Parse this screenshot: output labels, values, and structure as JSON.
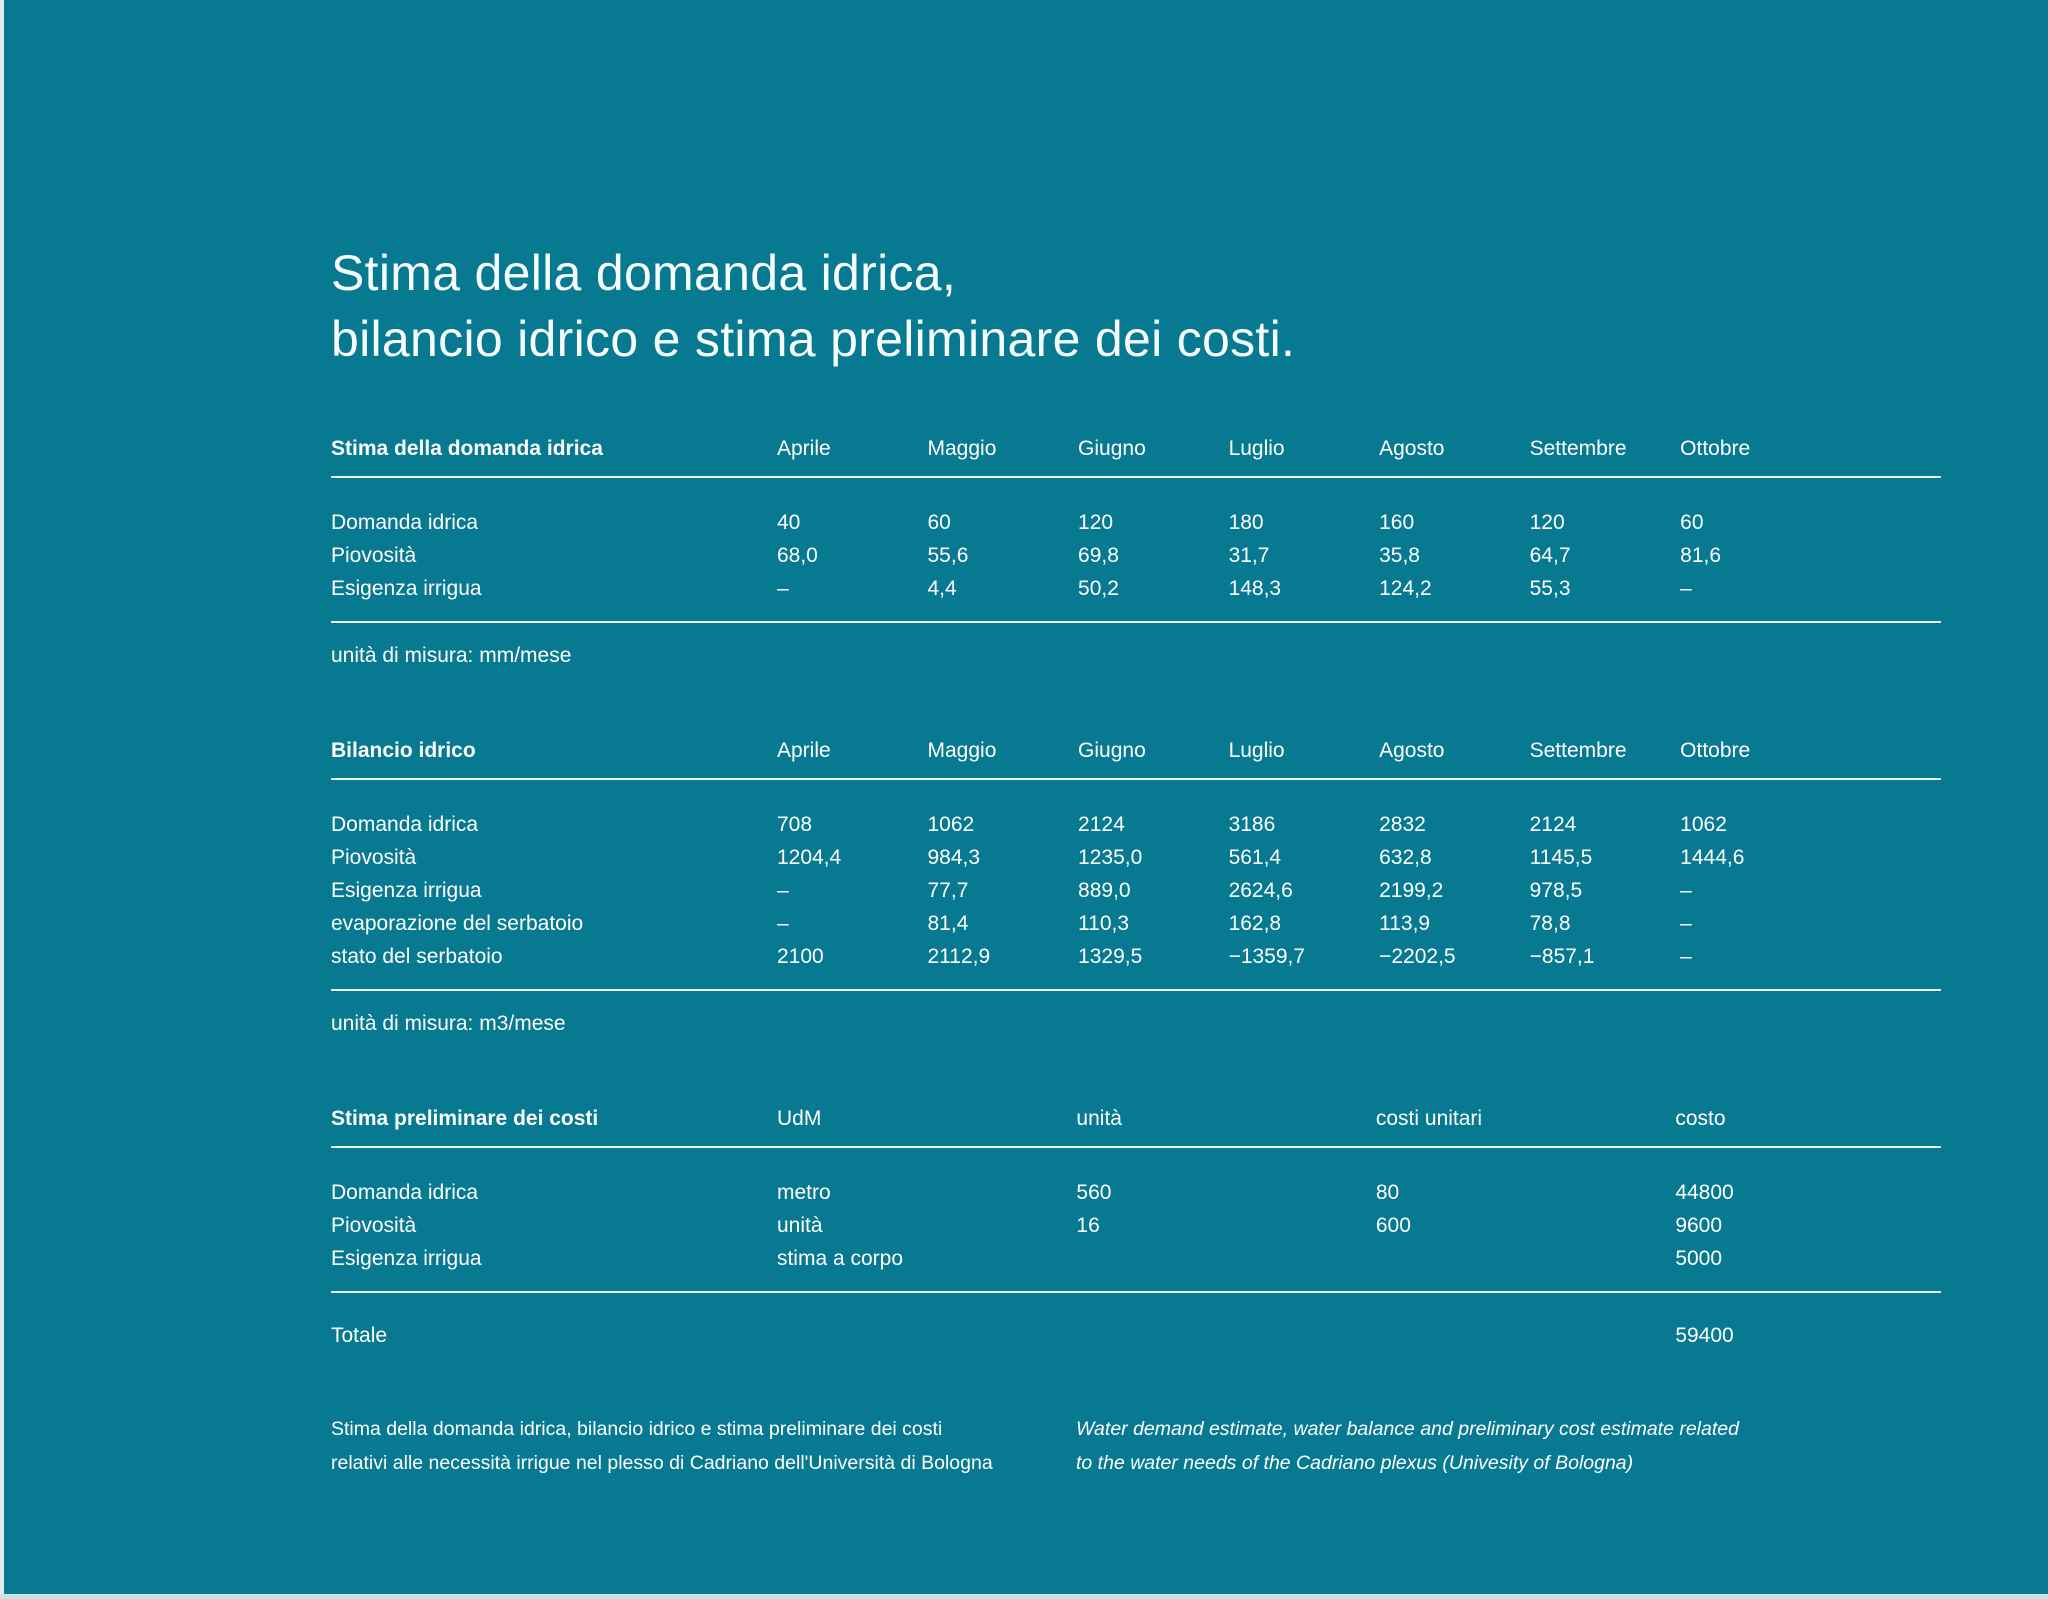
{
  "page": {
    "title_line1": "Stima della domanda idrica,",
    "title_line2": "bilancio idrico e stima preliminare dei costi."
  },
  "colors": {
    "background": "#077991",
    "text": "#ffffff",
    "rule": "#e9f4f6",
    "edge_strip": "#d8e6ea"
  },
  "tables": [
    {
      "title": "Stima della domanda idrica",
      "columns": [
        "Aprile",
        "Maggio",
        "Giugno",
        "Luglio",
        "Agosto",
        "Settembre",
        "Ottobre"
      ],
      "rows": [
        {
          "label": "Domanda idrica",
          "values": [
            "40",
            "60",
            "120",
            "180",
            "160",
            "120",
            "60"
          ]
        },
        {
          "label": "Piovosità",
          "values": [
            "68,0",
            "55,6",
            "69,8",
            "31,7",
            "35,8",
            "64,7",
            "81,6"
          ]
        },
        {
          "label": "Esigenza irrigua",
          "values": [
            "–",
            "4,4",
            "50,2",
            "148,3",
            "124,2",
            "55,3",
            "–"
          ]
        }
      ],
      "note": "unità di misura: mm/mese"
    },
    {
      "title": "Bilancio idrico",
      "columns": [
        "Aprile",
        "Maggio",
        "Giugno",
        "Luglio",
        "Agosto",
        "Settembre",
        "Ottobre"
      ],
      "rows": [
        {
          "label": "Domanda idrica",
          "values": [
            "708",
            "1062",
            "2124",
            "3186",
            "2832",
            "2124",
            "1062"
          ]
        },
        {
          "label": "Piovosità",
          "values": [
            "1204,4",
            "984,3",
            "1235,0",
            "561,4",
            "632,8",
            "1145,5",
            "1444,6"
          ]
        },
        {
          "label": "Esigenza irrigua",
          "values": [
            "–",
            "77,7",
            "889,0",
            "2624,6",
            "2199,2",
            "978,5",
            "–"
          ]
        },
        {
          "label": "evaporazione del serbatoio",
          "values": [
            "–",
            "81,4",
            "110,3",
            "162,8",
            "113,9",
            "78,8",
            "–"
          ]
        },
        {
          "label": "stato del serbatoio",
          "values": [
            "2100",
            "2112,9",
            "1329,5",
            "−1359,7",
            "−2202,5",
            "−857,1",
            "–"
          ]
        }
      ],
      "note": "unità di misura: m3/mese"
    },
    {
      "title": "Stima preliminare dei costi",
      "columns": [
        "UdM",
        "unità",
        "costi unitari",
        "costo"
      ],
      "rows": [
        {
          "label": "Domanda idrica",
          "values": [
            "metro",
            "560",
            "80",
            "44800"
          ]
        },
        {
          "label": "Piovosità",
          "values": [
            "unità",
            "16",
            "600",
            "9600"
          ]
        },
        {
          "label": "Esigenza irrigua",
          "values": [
            "stima a corpo",
            "",
            "",
            "5000"
          ]
        }
      ],
      "total": {
        "label": "Totale",
        "value": "59400"
      }
    }
  ],
  "captions": {
    "italian": [
      "Stima della domanda idrica, bilancio idrico e stima preliminare dei costi",
      "relativi alle necessità irrigue nel plesso di Cadriano dell'Università di Bologna"
    ],
    "english": [
      "Water demand estimate, water balance and preliminary cost estimate  related",
      "to the water needs of the Cadriano plexus (Univesity of Bologna)"
    ]
  }
}
